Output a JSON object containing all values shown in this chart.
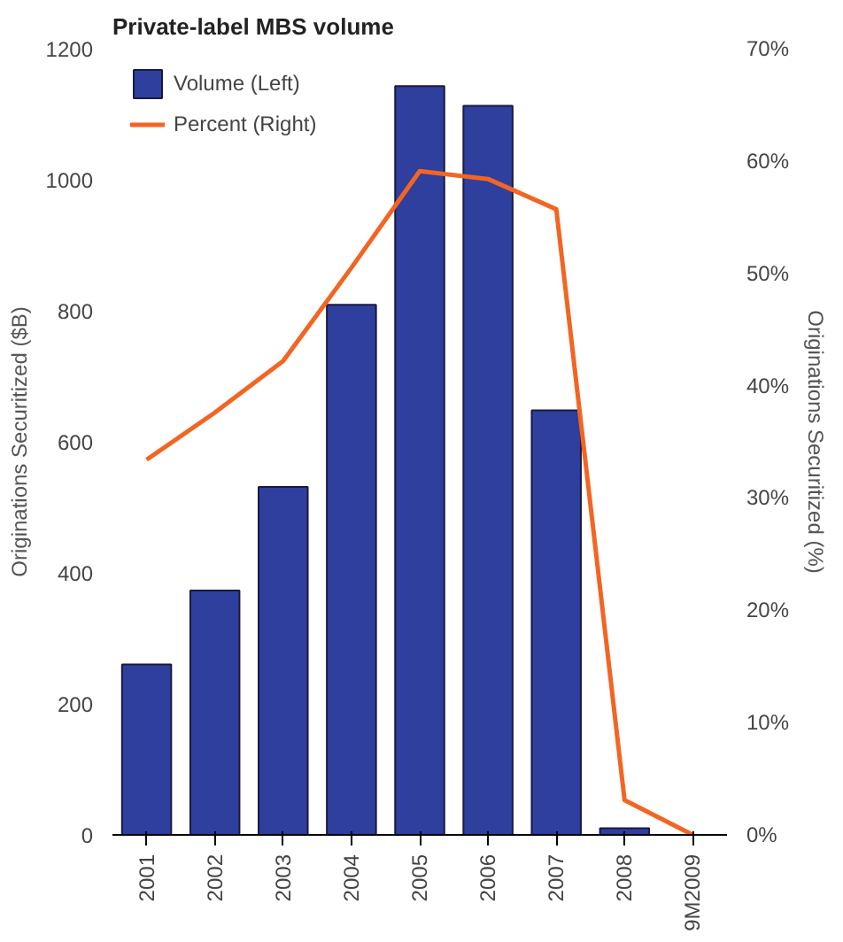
{
  "chart_data": {
    "type": "bar",
    "title": "Private-label MBS volume",
    "categories": [
      "2001",
      "2002",
      "2003",
      "2004",
      "2005",
      "2006",
      "2007",
      "2008",
      "9M2009"
    ],
    "series": [
      {
        "name": "Volume (Left)",
        "color": "#2e3f9e",
        "values": [
          260,
          373,
          531,
          809,
          1143,
          1113,
          648,
          10,
          null
        ]
      },
      {
        "name": "Percent (Right)",
        "type": "line",
        "axis": "y2",
        "color": "#f26522",
        "values": [
          33.4,
          37.6,
          42.2,
          50.5,
          59.1,
          58.4,
          55.7,
          3.1,
          0
        ]
      }
    ],
    "ylabel": "Originations Securitized ($B)",
    "y2label": "Originations Securitized (%)",
    "ylim": [
      0,
      1200
    ],
    "yticks": [
      0,
      200,
      400,
      600,
      800,
      1000,
      1200
    ],
    "y2lim": [
      0,
      70
    ],
    "y2ticks": [
      {
        "value": 0,
        "label": "0%"
      },
      {
        "value": 10,
        "label": "10%"
      },
      {
        "value": 20,
        "label": "20%"
      },
      {
        "value": 30,
        "label": "30%"
      },
      {
        "value": 40,
        "label": "40%"
      },
      {
        "value": 50,
        "label": "50%"
      },
      {
        "value": 60,
        "label": "60%"
      },
      {
        "value": 70,
        "label": "70%"
      }
    ],
    "legend": "top left",
    "grid": false
  }
}
